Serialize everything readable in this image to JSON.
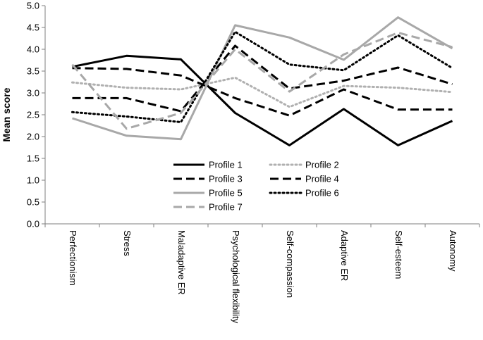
{
  "chart_data": {
    "type": "line",
    "title": "",
    "xlabel": "",
    "ylabel": "Mean score",
    "ylim": [
      0,
      5
    ],
    "ytick_step": 0.5,
    "yticks": [
      "0.0",
      "0.5",
      "1.0",
      "1.5",
      "2.0",
      "2.5",
      "3.0",
      "3.5",
      "4.0",
      "4.5",
      "5.0"
    ],
    "grid": false,
    "legend_position": "bottom-center",
    "categories": [
      "Perfectionism",
      "Stress",
      "Maladaptive ER",
      "Psychological flexibility",
      "Self-compassion",
      "Adaptive ER",
      "Self-esteem",
      "Autonomy"
    ],
    "series": [
      {
        "name": "Profile 1",
        "color": "#000000",
        "dash": "solid",
        "values": [
          3.6,
          3.85,
          3.77,
          2.54,
          1.8,
          2.63,
          1.8,
          2.36
        ]
      },
      {
        "name": "Profile 2",
        "color": "#b0b0b0",
        "dash": "dotted",
        "values": [
          3.24,
          3.12,
          3.08,
          3.35,
          2.68,
          3.16,
          3.12,
          3.02
        ]
      },
      {
        "name": "Profile 3",
        "color": "#000000",
        "dash": "dashed",
        "values": [
          3.57,
          3.55,
          3.4,
          2.88,
          2.48,
          3.08,
          2.62,
          2.62
        ]
      },
      {
        "name": "Profile 4",
        "color": "#000000",
        "dash": "dashed",
        "values": [
          2.88,
          2.88,
          2.58,
          4.08,
          3.1,
          3.28,
          3.58,
          3.2
        ]
      },
      {
        "name": "Profile 5",
        "color": "#a8a8a8",
        "dash": "solid",
        "values": [
          2.42,
          2.02,
          1.94,
          4.55,
          4.27,
          3.76,
          4.73,
          4.02
        ]
      },
      {
        "name": "Profile 6",
        "color": "#000000",
        "dash": "dotted",
        "values": [
          2.56,
          2.46,
          2.33,
          4.4,
          3.65,
          3.52,
          4.32,
          3.57
        ]
      },
      {
        "name": "Profile 7",
        "color": "#a8a8a8",
        "dash": "dashed",
        "values": [
          3.65,
          2.18,
          2.54,
          4.0,
          3.03,
          3.88,
          4.38,
          4.05
        ]
      }
    ]
  }
}
